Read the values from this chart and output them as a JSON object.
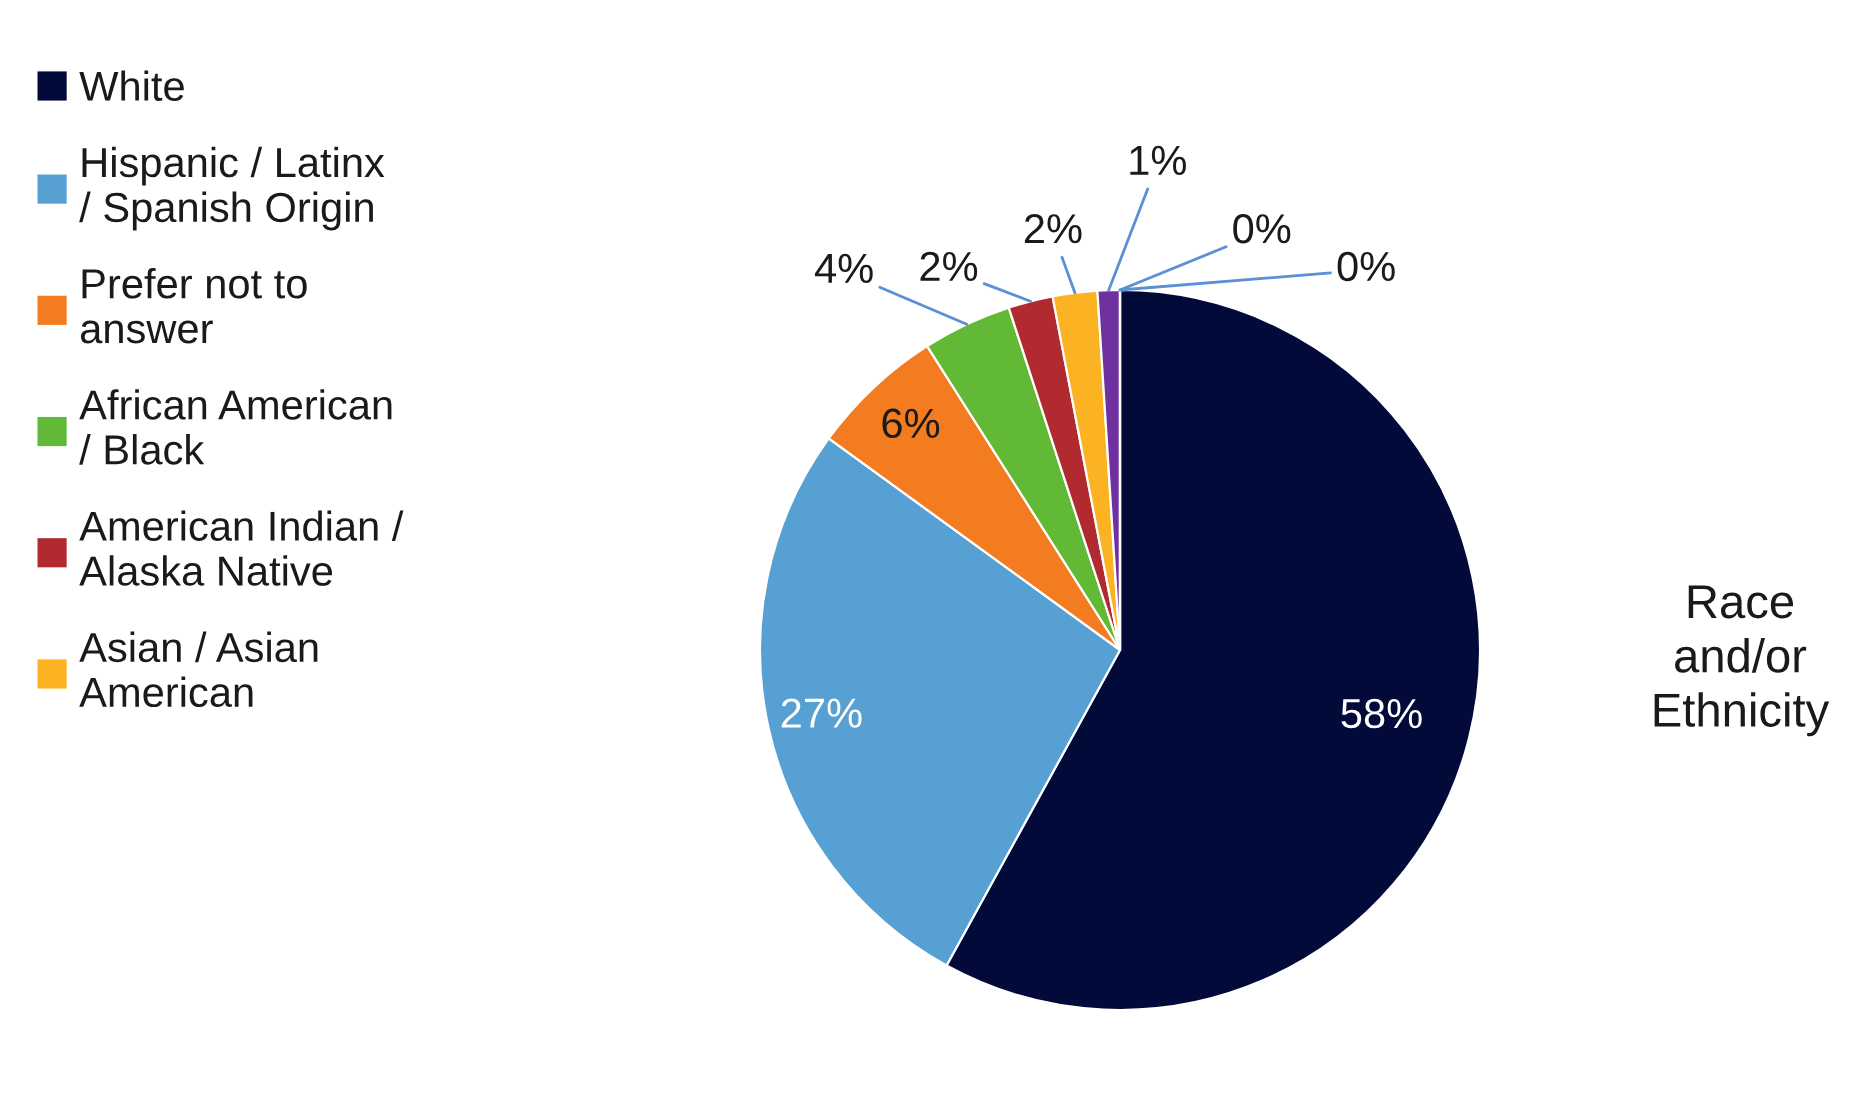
{
  "chart_data": {
    "type": "pie",
    "title": "Race\nand/or\nEthnicity",
    "categories": [
      "White",
      "Hispanic / Latinx\n/ Spanish Origin",
      "Prefer not to\nanswer",
      "African American\n/ Black",
      "American Indian /\nAlaska Native",
      "Asian / Asian\nAmerican",
      null,
      null,
      null
    ],
    "values": [
      58,
      27,
      6,
      4,
      2,
      2,
      1,
      0,
      0
    ],
    "colors": [
      "#020a3a",
      "#56a0d3",
      "#f47c20",
      "#62b936",
      "#b02a30",
      "#fbb324",
      "#7030a0",
      "#ff0000",
      "#2a6a8f"
    ],
    "value_labels": [
      "58%",
      "27%",
      "6%",
      "4%",
      "2%",
      "2%",
      "1%",
      "0%",
      "0%"
    ],
    "legend": "left"
  }
}
